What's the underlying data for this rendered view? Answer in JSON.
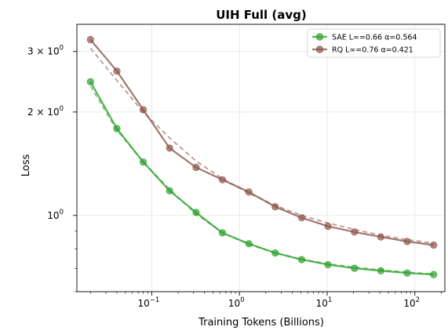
{
  "chart_data": {
    "type": "line",
    "title": "UIH Full (avg)",
    "xlabel": "Training Tokens (Billions)",
    "ylabel": "Loss",
    "xscale": "log",
    "yscale": "log",
    "xlim": [
      0.014,
      220
    ],
    "ylim": [
      0.6,
      3.6
    ],
    "grid": true,
    "legend_position": "top-right",
    "x_ticks": [
      {
        "value": 0.1,
        "base": "10",
        "exp": "−1"
      },
      {
        "value": 1,
        "base": "10",
        "exp": "0"
      },
      {
        "value": 10,
        "base": "10",
        "exp": "1"
      },
      {
        "value": 100,
        "base": "10",
        "exp": "2"
      }
    ],
    "y_ticks": [
      {
        "value": 1,
        "mant": "",
        "exp": "0"
      },
      {
        "value": 2,
        "mant": "2 × ",
        "exp": "0"
      },
      {
        "value": 3,
        "mant": "3 × ",
        "exp": "0"
      }
    ],
    "x": [
      0.02,
      0.04,
      0.08,
      0.16,
      0.32,
      0.64,
      1.28,
      2.56,
      5.12,
      10.24,
      20.48,
      40.96,
      81.92,
      163.84
    ],
    "series": [
      {
        "name": "SAE L∞=0.66 α=0.564",
        "color": "#2ca02c",
        "values": [
          2.45,
          1.79,
          1.43,
          1.18,
          1.02,
          0.89,
          0.827,
          0.778,
          0.744,
          0.719,
          0.702,
          0.69,
          0.68,
          0.673
        ],
        "fit": [
          2.38,
          1.77,
          1.43,
          1.19,
          1.01,
          0.891,
          0.824,
          0.778,
          0.746,
          0.723,
          0.707,
          0.694,
          0.684,
          0.675
        ]
      },
      {
        "name": "RQ L∞=0.76 α=0.421",
        "color": "#8c564b",
        "values": [
          3.25,
          2.63,
          2.03,
          1.57,
          1.38,
          1.27,
          1.17,
          1.06,
          0.985,
          0.93,
          0.895,
          0.866,
          0.84,
          0.82
        ],
        "fit": [
          3.07,
          2.47,
          2.0,
          1.68,
          1.44,
          1.28,
          1.16,
          1.07,
          1.0,
          0.95,
          0.91,
          0.876,
          0.85,
          0.83
        ]
      }
    ]
  }
}
